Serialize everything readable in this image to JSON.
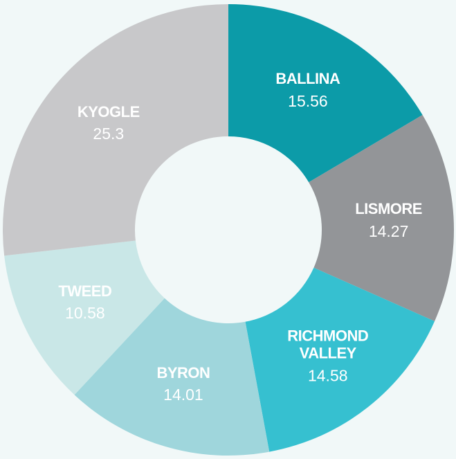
{
  "chart_data": {
    "type": "donut",
    "categories": [
      "BALLINA",
      "LISMORE",
      "RICHMOND VALLEY",
      "BYRON",
      "TWEED",
      "KYOGLE"
    ],
    "values": [
      15.56,
      14.27,
      14.58,
      14.01,
      10.58,
      25.3
    ],
    "colors": [
      "#0c9ba8",
      "#939598",
      "#36c0d0",
      "#9fd6dc",
      "#c9e7e7",
      "#c8c8ca"
    ]
  }
}
